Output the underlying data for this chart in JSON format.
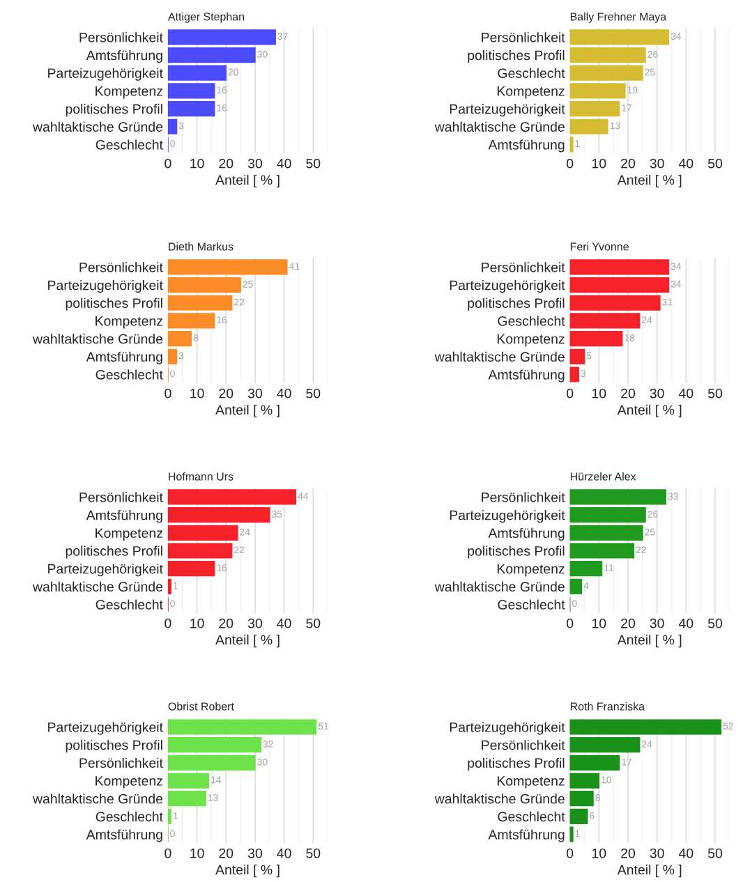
{
  "chart_data": [
    {
      "type": "bar",
      "orientation": "horizontal",
      "title": "Attiger Stephan",
      "xlabel": "Anteil [ % ]",
      "categories": [
        "Persönlichkeit",
        "Amtsführung",
        "Parteizugehörigkeit",
        "Kompetenz",
        "politisches Profil",
        "wahltaktische Gründe",
        "Geschlecht"
      ],
      "values": [
        37,
        30,
        20,
        16,
        16,
        3,
        0
      ],
      "color": "#4b4bfa",
      "xlim": [
        0,
        55
      ],
      "xticks": [
        0,
        {
          "value": 5,
          "label": null
        },
        10,
        {
          "value": 15,
          "label": null
        },
        20,
        {
          "value": 25,
          "label": null
        },
        30,
        {
          "value": 35,
          "label": null
        },
        40,
        {
          "value": 45,
          "label": null
        },
        50,
        {
          "value": 55,
          "label": null
        }
      ],
      "grid": "x",
      "data_labels": true
    },
    {
      "type": "bar",
      "orientation": "horizontal",
      "title": "Bally Frehner Maya",
      "xlabel": "Anteil [ % ]",
      "categories": [
        "Persönlichkeit",
        "politisches Profil",
        "Geschlecht",
        "Kompetenz",
        "Parteizugehörigkeit",
        "wahltaktische Gründe",
        "Amtsführung"
      ],
      "values": [
        34,
        26,
        25,
        19,
        17,
        13,
        1
      ],
      "color": "#d6bc33",
      "xlim": [
        0,
        55
      ],
      "xticks": [
        0,
        {
          "value": 5,
          "label": null
        },
        10,
        {
          "value": 15,
          "label": null
        },
        20,
        {
          "value": 25,
          "label": null
        },
        30,
        {
          "value": 35,
          "label": null
        },
        40,
        {
          "value": 45,
          "label": null
        },
        50,
        {
          "value": 55,
          "label": null
        }
      ],
      "grid": "x",
      "data_labels": true
    },
    {
      "type": "bar",
      "orientation": "horizontal",
      "title": "Dieth Markus",
      "xlabel": "Anteil [ % ]",
      "categories": [
        "Persönlichkeit",
        "Parteizugehörigkeit",
        "politisches Profil",
        "Kompetenz",
        "wahltaktische Gründe",
        "Amtsführung",
        "Geschlecht"
      ],
      "values": [
        41,
        25,
        22,
        16,
        8,
        3,
        0
      ],
      "color": "#fb8c28",
      "xlim": [
        0,
        55
      ],
      "xticks": [
        0,
        {
          "value": 5,
          "label": null
        },
        10,
        {
          "value": 15,
          "label": null
        },
        20,
        {
          "value": 25,
          "label": null
        },
        30,
        {
          "value": 35,
          "label": null
        },
        40,
        {
          "value": 45,
          "label": null
        },
        50,
        {
          "value": 55,
          "label": null
        }
      ],
      "grid": "x",
      "data_labels": true
    },
    {
      "type": "bar",
      "orientation": "horizontal",
      "title": "Feri Yvonne",
      "xlabel": "Anteil [ % ]",
      "categories": [
        "Persönlichkeit",
        "Parteizugehörigkeit",
        "politisches Profil",
        "Geschlecht",
        "Kompetenz",
        "wahltaktische Gründe",
        "Amtsführung"
      ],
      "values": [
        34,
        34,
        31,
        24,
        18,
        5,
        3
      ],
      "color": "#f5222a",
      "xlim": [
        0,
        55
      ],
      "xticks": [
        0,
        {
          "value": 5,
          "label": null
        },
        10,
        {
          "value": 15,
          "label": null
        },
        20,
        {
          "value": 25,
          "label": null
        },
        30,
        {
          "value": 35,
          "label": null
        },
        40,
        {
          "value": 45,
          "label": null
        },
        50,
        {
          "value": 55,
          "label": null
        }
      ],
      "grid": "x",
      "data_labels": true
    },
    {
      "type": "bar",
      "orientation": "horizontal",
      "title": "Hofmann Urs",
      "xlabel": "Anteil [ % ]",
      "categories": [
        "Persönlichkeit",
        "Amtsführung",
        "Kompetenz",
        "politisches Profil",
        "Parteizugehörigkeit",
        "wahltaktische Gründe",
        "Geschlecht"
      ],
      "values": [
        44,
        35,
        24,
        22,
        16,
        1,
        0
      ],
      "color": "#f5222a",
      "xlim": [
        0,
        55
      ],
      "xticks": [
        0,
        {
          "value": 5,
          "label": null
        },
        10,
        {
          "value": 15,
          "label": null
        },
        20,
        {
          "value": 25,
          "label": null
        },
        30,
        {
          "value": 35,
          "label": null
        },
        40,
        {
          "value": 45,
          "label": null
        },
        50,
        {
          "value": 55,
          "label": null
        }
      ],
      "grid": "x",
      "data_labels": true
    },
    {
      "type": "bar",
      "orientation": "horizontal",
      "title": "Hürzeler Alex",
      "xlabel": "Anteil [ % ]",
      "categories": [
        "Persönlichkeit",
        "Parteizugehörigkeit",
        "Amtsführung",
        "politisches Profil",
        "Kompetenz",
        "wahltaktische Gründe",
        "Geschlecht"
      ],
      "values": [
        33,
        26,
        25,
        22,
        11,
        4,
        0
      ],
      "color": "#1f9a1f",
      "xlim": [
        0,
        55
      ],
      "xticks": [
        0,
        {
          "value": 5,
          "label": null
        },
        10,
        {
          "value": 15,
          "label": null
        },
        20,
        {
          "value": 25,
          "label": null
        },
        30,
        {
          "value": 35,
          "label": null
        },
        40,
        {
          "value": 45,
          "label": null
        },
        50,
        {
          "value": 55,
          "label": null
        }
      ],
      "grid": "x",
      "data_labels": true
    },
    {
      "type": "bar",
      "orientation": "horizontal",
      "title": "Obrist Robert",
      "xlabel": "Anteil [ % ]",
      "categories": [
        "Parteizugehörigkeit",
        "politisches Profil",
        "Persönlichkeit",
        "Kompetenz",
        "wahltaktische Gründe",
        "Geschlecht",
        "Amtsführung"
      ],
      "values": [
        51,
        32,
        30,
        14,
        13,
        1,
        0
      ],
      "color": "#6de24a",
      "xlim": [
        0,
        55
      ],
      "xticks": [
        0,
        {
          "value": 5,
          "label": null
        },
        10,
        {
          "value": 15,
          "label": null
        },
        20,
        {
          "value": 25,
          "label": null
        },
        30,
        {
          "value": 35,
          "label": null
        },
        40,
        {
          "value": 45,
          "label": null
        },
        50,
        {
          "value": 55,
          "label": null
        }
      ],
      "grid": "x",
      "data_labels": true
    },
    {
      "type": "bar",
      "orientation": "horizontal",
      "title": "Roth Franziska",
      "xlabel": "Anteil [ % ]",
      "categories": [
        "Parteizugehörigkeit",
        "Persönlichkeit",
        "politisches Profil",
        "Kompetenz",
        "wahltaktische Gründe",
        "Geschlecht",
        "Amtsführung"
      ],
      "values": [
        52,
        24,
        17,
        10,
        8,
        6,
        1
      ],
      "color": "#1a921a",
      "xlim": [
        0,
        55
      ],
      "xticks": [
        0,
        {
          "value": 5,
          "label": null
        },
        10,
        {
          "value": 15,
          "label": null
        },
        20,
        {
          "value": 25,
          "label": null
        },
        30,
        {
          "value": 35,
          "label": null
        },
        40,
        {
          "value": 45,
          "label": null
        },
        50,
        {
          "value": 55,
          "label": null
        }
      ],
      "grid": "x",
      "data_labels": true
    }
  ]
}
